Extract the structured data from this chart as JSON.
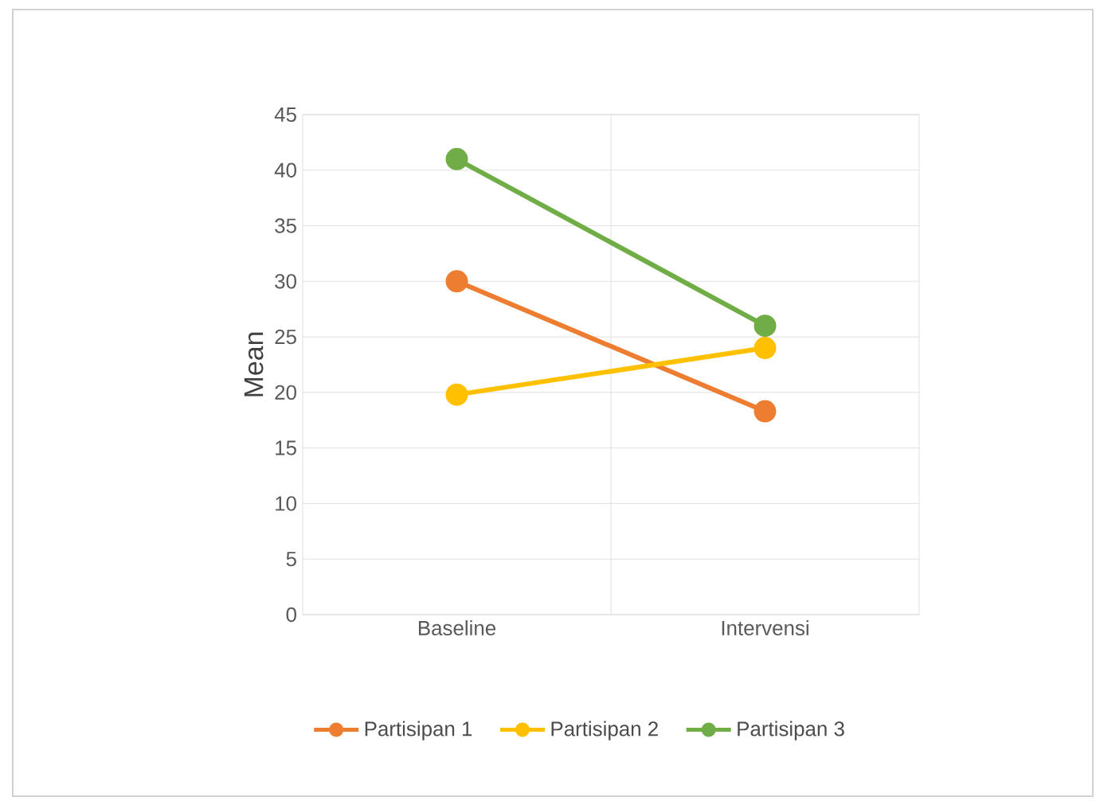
{
  "chart_data": {
    "type": "line",
    "ylabel": "Mean",
    "categories": [
      "Baseline",
      "Intervensi"
    ],
    "series": [
      {
        "name": "Partisipan 1",
        "color": "#ed7d31",
        "values": [
          30,
          18.3
        ]
      },
      {
        "name": "Partisipan 2",
        "color": "#ffc000",
        "values": [
          19.8,
          24
        ]
      },
      {
        "name": "Partisipan 3",
        "color": "#70ad47",
        "values": [
          41,
          26
        ]
      }
    ],
    "ylim": [
      0,
      45
    ],
    "yticks": [
      0,
      5,
      10,
      15,
      20,
      25,
      30,
      35,
      40,
      45
    ],
    "grid": true,
    "legend": "bottom",
    "marker": "circle",
    "line_style": "solid"
  }
}
